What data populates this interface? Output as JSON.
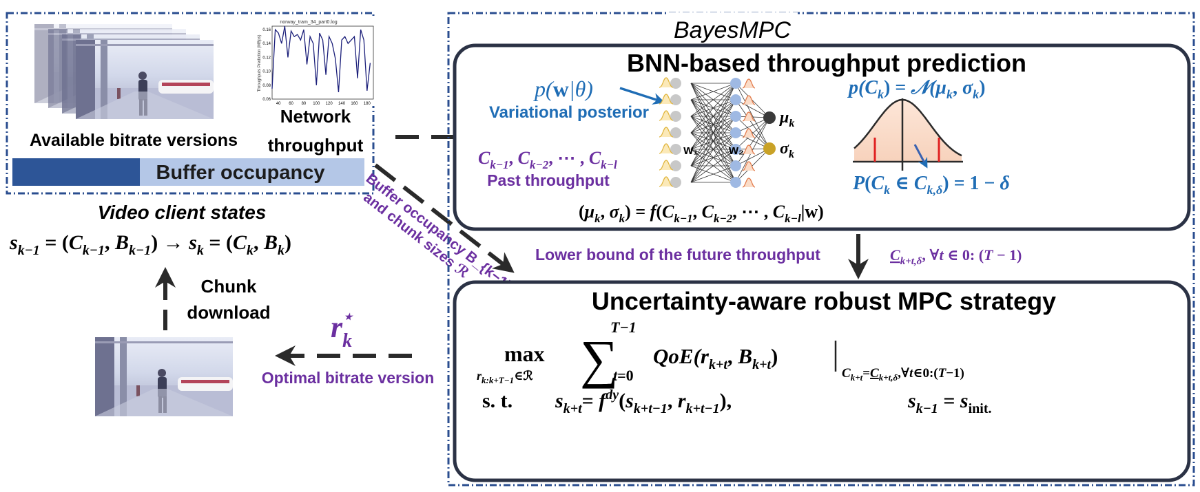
{
  "client": {
    "bitrate_label": "Available bitrate versions",
    "network_label_1": "Network",
    "network_label_2": "throughput",
    "buffer_label": "Buffer occupancy",
    "states_title": "Video client states",
    "states_formula": "s_{k−1} = (C_{k−1}, B_{k−1}) → s_k = (C_k, B_k)",
    "chunk_label_1": "Chunk",
    "chunk_label_2": "download",
    "throughput_chart": {
      "title": "norway_tram_34_part0.log",
      "ylabel": "Throughputs Prediction (MBps)"
    }
  },
  "chart_data": {
    "type": "line",
    "title": "norway_tram_34_part0.log",
    "xlabel": "",
    "ylabel": "Throughputs Prediction (MBps)",
    "xlim": [
      30,
      190
    ],
    "ylim": [
      0.06,
      0.165
    ],
    "xticks": [
      40,
      60,
      80,
      100,
      120,
      140,
      160,
      180
    ],
    "yticks": [
      0.06,
      0.08,
      0.1,
      0.12,
      0.14,
      0.16
    ],
    "x": [
      30,
      35,
      40,
      45,
      50,
      55,
      60,
      65,
      70,
      75,
      80,
      85,
      90,
      95,
      100,
      105,
      110,
      115,
      120,
      125,
      130,
      135,
      140,
      145,
      150,
      155,
      160,
      165,
      170,
      175,
      180,
      185
    ],
    "series": [
      {
        "values": [
          0.075,
          0.16,
          0.155,
          0.14,
          0.165,
          0.12,
          0.158,
          0.15,
          0.153,
          0.145,
          0.16,
          0.11,
          0.15,
          0.14,
          0.08,
          0.155,
          0.145,
          0.095,
          0.15,
          0.14,
          0.118,
          0.07,
          0.145,
          0.15,
          0.14,
          0.145,
          0.15,
          0.09,
          0.16,
          0.145,
          0.072,
          0.112
        ]
      }
    ]
  },
  "bayes": {
    "title": "BayesMPC",
    "bnn_title": "BNN-based throughput prediction",
    "posterior_formula": "p(w|θ)",
    "posterior_label": "Variational posterior",
    "past_formula": "C_{k−1}, C_{k−2}, ⋯ , C_{k−l}",
    "past_label": "Past throughput",
    "w1": "w₁",
    "w2": "w₂",
    "mu": "μ_k",
    "sigma": "σ_k",
    "dist_formula": "p(C_k) = 𝒩(μ_k, σ_k)",
    "prob_formula": "P(C_k ∈ C_{k,δ}) = 1 − δ",
    "f_formula": "(μ_k, σ_k) = f(C_{k−1}, C_{k−2}, ⋯ , C_{k−l}|w)"
  },
  "connectors": {
    "buffer_arrow_1": "Buffer occupancy B_{k−1}",
    "buffer_arrow_2": "and chunk sizes ℛ",
    "lower_bound": "Lower bound of the future throughput",
    "lower_bound_formula": "C_{k+t,δ}, ∀t ∈ 0: (T − 1)",
    "rstar": "r*_k",
    "optimal_label": "Optimal bitrate version"
  },
  "mpc": {
    "title": "Uncertainty-aware robust MPC strategy",
    "objective": "max Σ QoE(r_{k+t}, B_{k+t}) | C_{k+t}=C_{k+t,δ},∀t∈0:(T−1)",
    "constraint": "s.t.  s_{k+t} = f^{dy}(s_{k+t−1}, r_{k+t−1}),   s_{k−1} = s_init."
  },
  "colors": {
    "dash_blue": "#2a4d8f",
    "buffer_dark": "#2d5597",
    "buffer_light": "#b4c7e7",
    "purple": "#6b2fa0",
    "blue_text": "#1f6db5",
    "box_border": "#2b3245",
    "gauss_fill": "#f8dccb",
    "red": "#e02020"
  }
}
